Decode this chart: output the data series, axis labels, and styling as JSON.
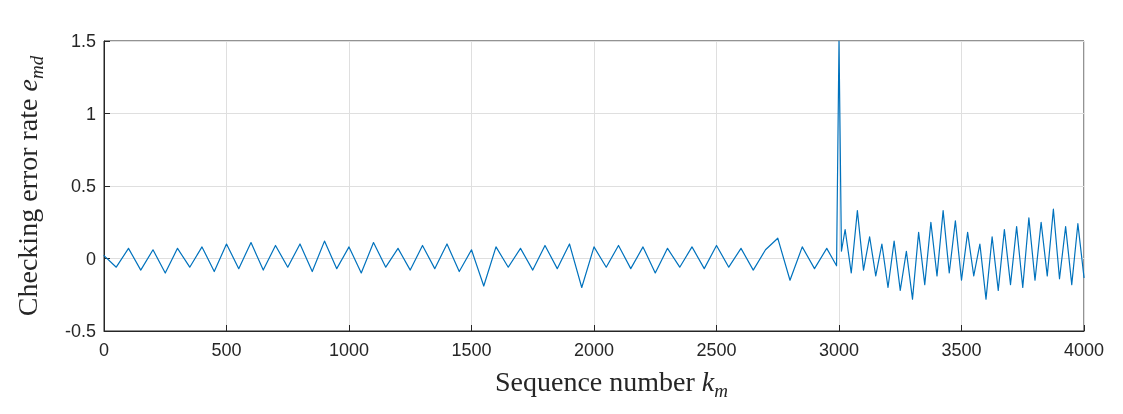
{
  "chart_data": {
    "type": "line",
    "xlabel": "Sequence number k$_{m}$",
    "ylabel": "Checking error rate e$_{md}$",
    "x": [
      0,
      50,
      100,
      150,
      200,
      250,
      300,
      350,
      400,
      450,
      500,
      550,
      600,
      650,
      700,
      750,
      800,
      850,
      900,
      950,
      1000,
      1050,
      1100,
      1150,
      1200,
      1250,
      1300,
      1350,
      1400,
      1450,
      1500,
      1550,
      1600,
      1650,
      1700,
      1750,
      1800,
      1850,
      1900,
      1950,
      2000,
      2050,
      2100,
      2150,
      2200,
      2250,
      2300,
      2350,
      2400,
      2450,
      2500,
      2550,
      2600,
      2650,
      2700,
      2750,
      2800,
      2850,
      2900,
      2950,
      2990,
      3000,
      3010,
      3025,
      3050,
      3075,
      3100,
      3125,
      3150,
      3175,
      3200,
      3225,
      3250,
      3275,
      3300,
      3325,
      3350,
      3375,
      3400,
      3425,
      3450,
      3475,
      3500,
      3525,
      3550,
      3575,
      3600,
      3625,
      3650,
      3675,
      3700,
      3725,
      3750,
      3775,
      3800,
      3825,
      3850,
      3875,
      3900,
      3925,
      3950,
      3975,
      4000
    ],
    "series": [
      {
        "color": "#0072bd",
        "values": [
          0.02,
          -0.06,
          0.07,
          -0.08,
          0.06,
          -0.1,
          0.07,
          -0.06,
          0.08,
          -0.09,
          0.1,
          -0.07,
          0.11,
          -0.08,
          0.09,
          -0.06,
          0.1,
          -0.09,
          0.12,
          -0.07,
          0.08,
          -0.1,
          0.11,
          -0.06,
          0.07,
          -0.08,
          0.09,
          -0.07,
          0.1,
          -0.09,
          0.06,
          -0.19,
          0.08,
          -0.06,
          0.07,
          -0.08,
          0.09,
          -0.07,
          0.1,
          -0.2,
          0.08,
          -0.06,
          0.09,
          -0.07,
          0.08,
          -0.1,
          0.07,
          -0.06,
          0.08,
          -0.07,
          0.09,
          -0.06,
          0.07,
          -0.08,
          0.06,
          0.14,
          -0.15,
          0.08,
          -0.07,
          0.07,
          -0.05,
          1.5,
          0.05,
          0.2,
          -0.1,
          0.33,
          -0.08,
          0.15,
          -0.12,
          0.1,
          -0.2,
          0.12,
          -0.22,
          0.05,
          -0.28,
          0.18,
          -0.18,
          0.25,
          -0.12,
          0.33,
          -0.1,
          0.26,
          -0.15,
          0.18,
          -0.12,
          0.1,
          -0.28,
          0.15,
          -0.22,
          0.2,
          -0.18,
          0.22,
          -0.2,
          0.28,
          -0.15,
          0.25,
          -0.12,
          0.34,
          -0.14,
          0.22,
          -0.18,
          0.24,
          -0.13
        ]
      }
    ],
    "xlim": [
      0,
      4000
    ],
    "xticks": [
      0,
      500,
      1000,
      1500,
      2000,
      2500,
      3000,
      3500,
      4000
    ],
    "ylim": [
      -0.5,
      1.5
    ],
    "yticks": [
      -0.5,
      0,
      0.5,
      1,
      1.5
    ],
    "grid": true,
    "marker": "none",
    "line_style": "solid"
  }
}
